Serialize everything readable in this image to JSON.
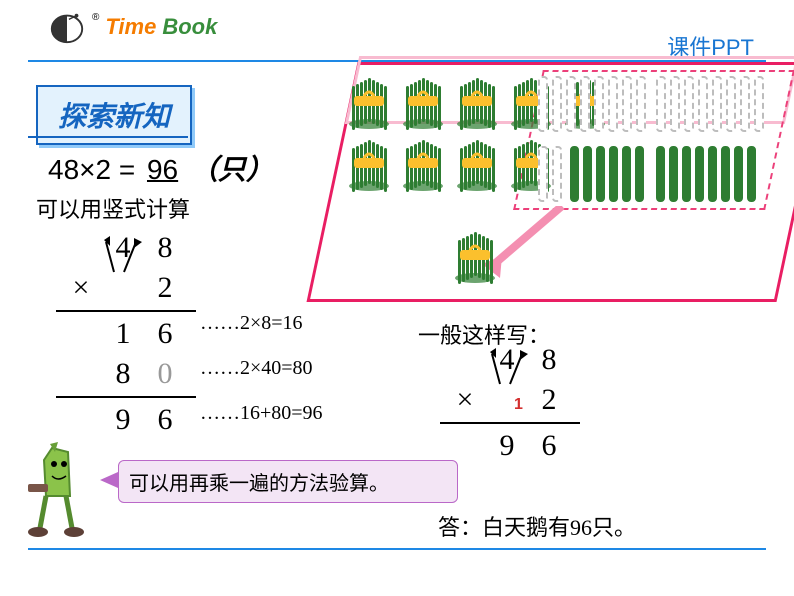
{
  "header": {
    "logo_time": "Time",
    "logo_book": "Book",
    "right_text": "课件PPT",
    "colors": {
      "time": "#f57c00",
      "book": "#388e3c",
      "right": "#1976d2",
      "divider": "#1e88e5"
    }
  },
  "title": {
    "text": "探索新知",
    "bg": "#e3f2fd",
    "border": "#1565c0",
    "text_color": "#1565c0",
    "shadow": "#90caf9"
  },
  "equation": {
    "left": "48×2 =",
    "result": "96",
    "unit": "（只）"
  },
  "note1": "可以用竖式计算",
  "vcalc": {
    "r1a": "4",
    "r1b": "8",
    "r2a": "×",
    "r2b": "2",
    "r3a": "1",
    "r3b": "6",
    "r4a": "8",
    "r4b": "0",
    "r5a": "9",
    "r5b": "6"
  },
  "annotations": {
    "a1": "……2×8=16",
    "a2": "……2×40=80",
    "a3": "……16+80=96"
  },
  "right_note": "一般这样写：",
  "vcalc2": {
    "r1a": "4",
    "r1b": "8",
    "r2a": "×",
    "r2b": "2",
    "r3a": "9",
    "r3b": "6",
    "carry": "1",
    "carry_color": "#d32f2f"
  },
  "callout": {
    "text": "可以用再乘一遍的方法验算。",
    "bg": "#f3e5f5",
    "border": "#ba68c8"
  },
  "answer": "答：白天鹅有96只。",
  "bundle": {
    "stick_color": "#2e7d32",
    "band_color": "#fbc02d",
    "parallelogram_color": "#e91e63",
    "dashed_color": "#ec407a",
    "fade_stick_border": "#bdbdbd"
  }
}
